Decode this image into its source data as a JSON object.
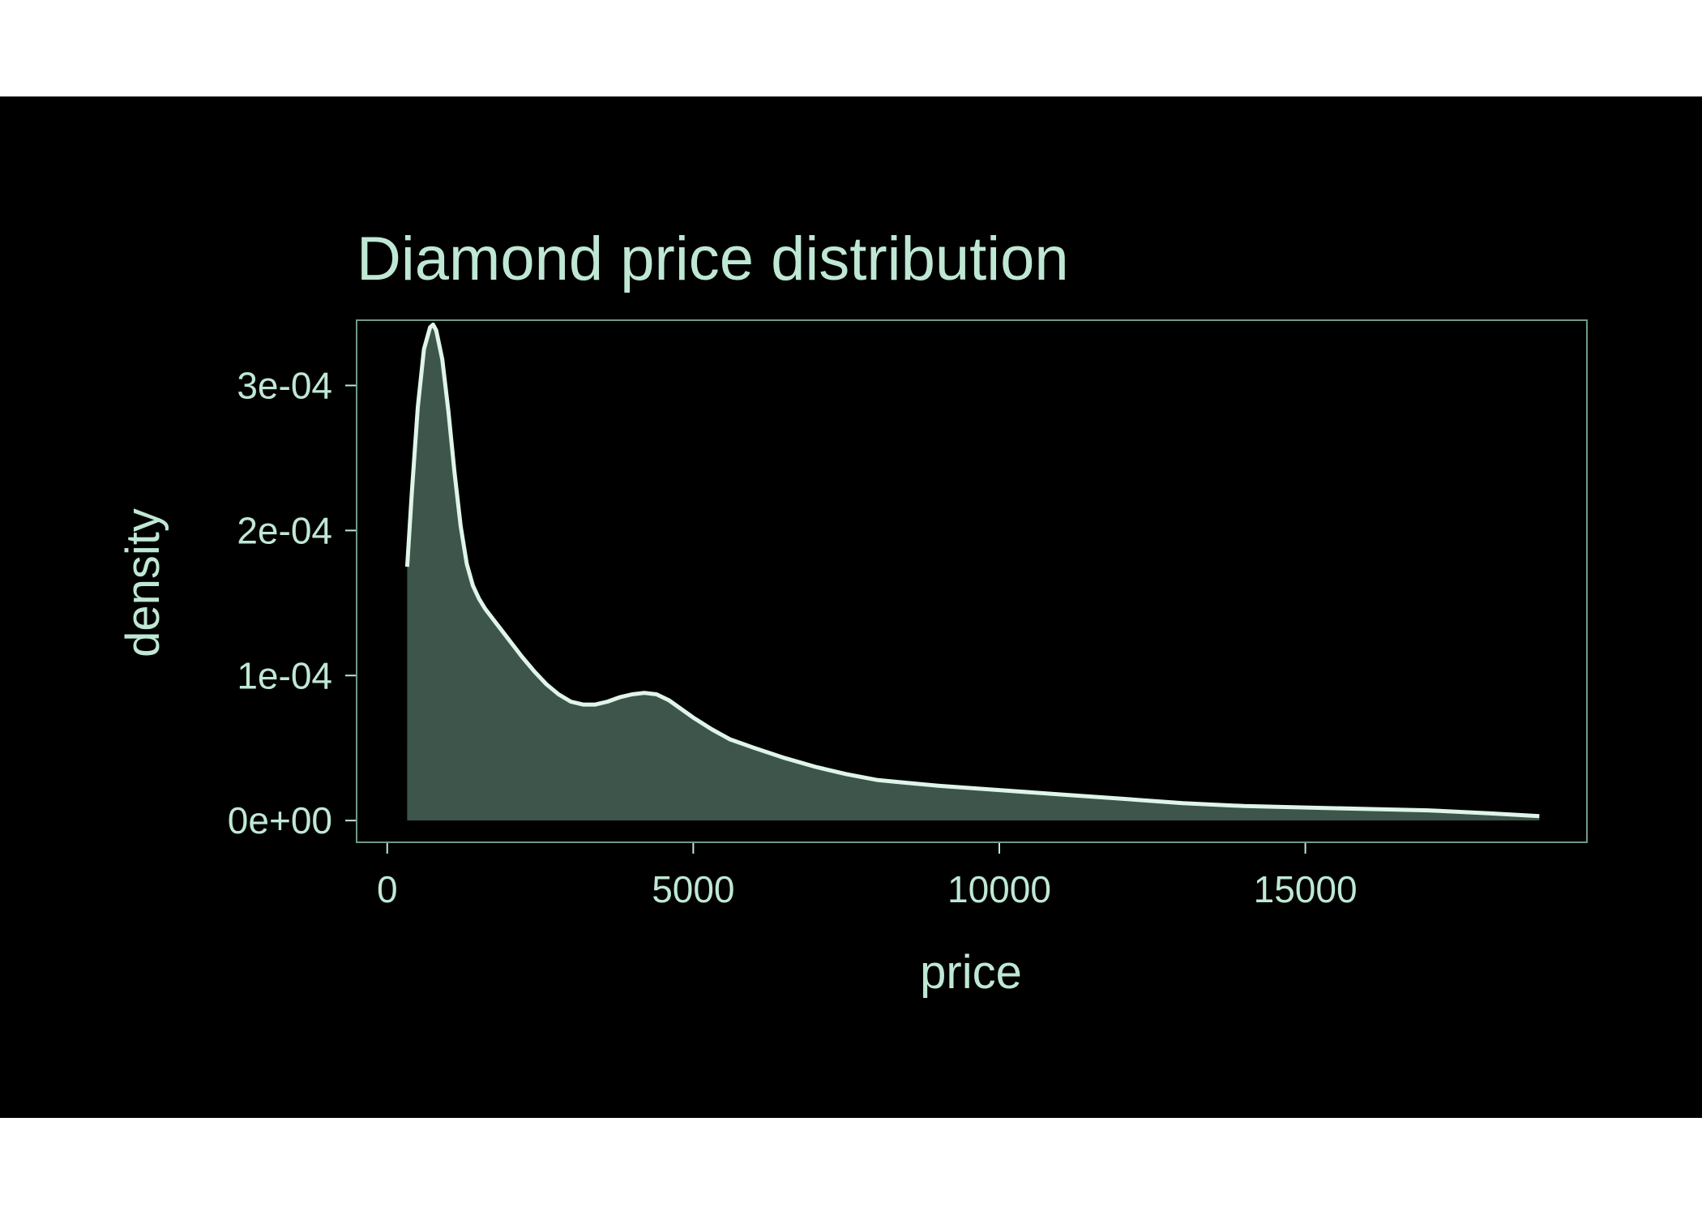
{
  "chart_data": {
    "type": "area",
    "title": "Diamond price distribution",
    "xlabel": "price",
    "ylabel": "density",
    "xlim": [
      -500,
      19600
    ],
    "ylim": [
      -1.5e-05,
      0.000345
    ],
    "xticks": [
      0,
      5000,
      10000,
      15000
    ],
    "xtick_labels": [
      "0",
      "5000",
      "10000",
      "15000"
    ],
    "yticks": [
      0,
      0.0001,
      0.0002,
      0.0003
    ],
    "ytick_labels": [
      "0e+00",
      "1e-04",
      "2e-04",
      "3e-04"
    ],
    "grid": false,
    "legend": "none",
    "series": [
      {
        "x": [
          326,
          400,
          500,
          600,
          700,
          750,
          800,
          900,
          1000,
          1100,
          1200,
          1300,
          1400,
          1500,
          1600,
          1800,
          2000,
          2200,
          2400,
          2600,
          2800,
          3000,
          3200,
          3400,
          3600,
          3800,
          4000,
          4200,
          4400,
          4600,
          4800,
          5000,
          5300,
          5600,
          6000,
          6500,
          7000,
          7500,
          8000,
          8500,
          9000,
          10000,
          11000,
          12000,
          13000,
          14000,
          15000,
          16000,
          17000,
          18000,
          18823
        ],
        "y": [
          0.000175,
          0.000225,
          0.000285,
          0.000325,
          0.00034,
          0.000342,
          0.000338,
          0.000318,
          0.000282,
          0.00024,
          0.000203,
          0.000177,
          0.000162,
          0.000153,
          0.000146,
          0.000135,
          0.000124,
          0.000113,
          0.000103,
          9.4e-05,
          8.7e-05,
          8.2e-05,
          8e-05,
          8e-05,
          8.2e-05,
          8.5e-05,
          8.7e-05,
          8.8e-05,
          8.7e-05,
          8.3e-05,
          7.7e-05,
          7.1e-05,
          6.3e-05,
          5.6e-05,
          5e-05,
          4.3e-05,
          3.7e-05,
          3.2e-05,
          2.8e-05,
          2.6e-05,
          2.4e-05,
          2.1e-05,
          1.8e-05,
          1.5e-05,
          1.2e-05,
          1e-05,
          9e-06,
          8e-06,
          7e-06,
          5e-06,
          3e-06
        ]
      }
    ],
    "colors": {
      "background": "#000000",
      "foreground": "#bfe8d4",
      "fill": "#6f9a86",
      "line": "#dff5ea"
    }
  }
}
